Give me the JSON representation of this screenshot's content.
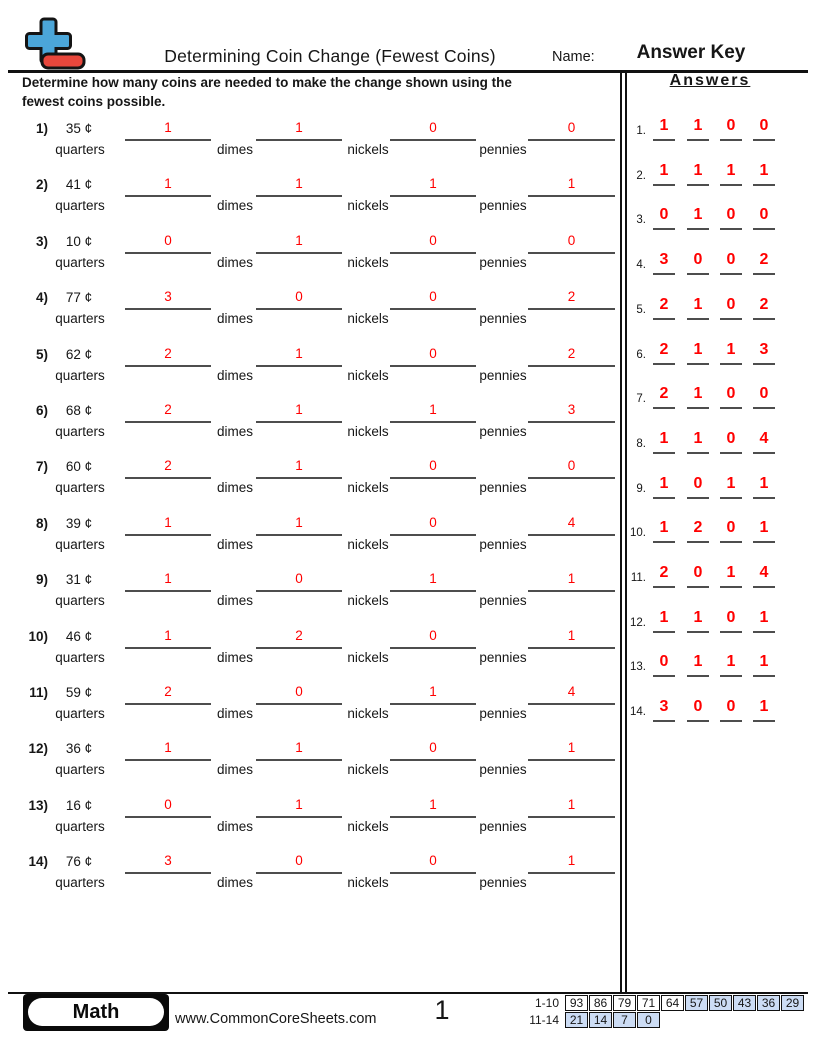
{
  "header": {
    "title": "Determining Coin Change (Fewest Coins)",
    "name_label": "Name:",
    "answer_key": "Answer Key"
  },
  "instructions": {
    "line1": "Determine how many coins are needed to make the change shown using the",
    "line2": "fewest coins possible."
  },
  "cent_symbol": "¢",
  "coin_labels": [
    "quarters",
    "dimes",
    "nickels",
    "pennies"
  ],
  "problems": [
    {
      "n": "1)",
      "amount": "35",
      "answers": [
        "1",
        "1",
        "0",
        "0"
      ]
    },
    {
      "n": "2)",
      "amount": "41",
      "answers": [
        "1",
        "1",
        "1",
        "1"
      ]
    },
    {
      "n": "3)",
      "amount": "10",
      "answers": [
        "0",
        "1",
        "0",
        "0"
      ]
    },
    {
      "n": "4)",
      "amount": "77",
      "answers": [
        "3",
        "0",
        "0",
        "2"
      ]
    },
    {
      "n": "5)",
      "amount": "62",
      "answers": [
        "2",
        "1",
        "0",
        "2"
      ]
    },
    {
      "n": "6)",
      "amount": "68",
      "answers": [
        "2",
        "1",
        "1",
        "3"
      ]
    },
    {
      "n": "7)",
      "amount": "60",
      "answers": [
        "2",
        "1",
        "0",
        "0"
      ]
    },
    {
      "n": "8)",
      "amount": "39",
      "answers": [
        "1",
        "1",
        "0",
        "4"
      ]
    },
    {
      "n": "9)",
      "amount": "31",
      "answers": [
        "1",
        "0",
        "1",
        "1"
      ]
    },
    {
      "n": "10)",
      "amount": "46",
      "answers": [
        "1",
        "2",
        "0",
        "1"
      ]
    },
    {
      "n": "11)",
      "amount": "59",
      "answers": [
        "2",
        "0",
        "1",
        "4"
      ]
    },
    {
      "n": "12)",
      "amount": "36",
      "answers": [
        "1",
        "1",
        "0",
        "1"
      ]
    },
    {
      "n": "13)",
      "amount": "16",
      "answers": [
        "0",
        "1",
        "1",
        "1"
      ]
    },
    {
      "n": "14)",
      "amount": "76",
      "answers": [
        "3",
        "0",
        "0",
        "1"
      ]
    }
  ],
  "answers_panel": {
    "title": "Answers",
    "rows": [
      {
        "n": "1.",
        "values": [
          "1",
          "1",
          "0",
          "0"
        ]
      },
      {
        "n": "2.",
        "values": [
          "1",
          "1",
          "1",
          "1"
        ]
      },
      {
        "n": "3.",
        "values": [
          "0",
          "1",
          "0",
          "0"
        ]
      },
      {
        "n": "4.",
        "values": [
          "3",
          "0",
          "0",
          "2"
        ]
      },
      {
        "n": "5.",
        "values": [
          "2",
          "1",
          "0",
          "2"
        ]
      },
      {
        "n": "6.",
        "values": [
          "2",
          "1",
          "1",
          "3"
        ]
      },
      {
        "n": "7.",
        "values": [
          "2",
          "1",
          "0",
          "0"
        ]
      },
      {
        "n": "8.",
        "values": [
          "1",
          "1",
          "0",
          "4"
        ]
      },
      {
        "n": "9.",
        "values": [
          "1",
          "0",
          "1",
          "1"
        ]
      },
      {
        "n": "10.",
        "values": [
          "1",
          "2",
          "0",
          "1"
        ]
      },
      {
        "n": "11.",
        "values": [
          "2",
          "0",
          "1",
          "4"
        ]
      },
      {
        "n": "12.",
        "values": [
          "1",
          "1",
          "0",
          "1"
        ]
      },
      {
        "n": "13.",
        "values": [
          "0",
          "1",
          "1",
          "1"
        ]
      },
      {
        "n": "14.",
        "values": [
          "3",
          "0",
          "0",
          "1"
        ]
      }
    ]
  },
  "footer": {
    "subject": "Math",
    "website": "www.CommonCoreSheets.com",
    "page_number": "1",
    "score_table": [
      {
        "label": "1-10",
        "cells": [
          "93",
          "86",
          "79",
          "71",
          "64",
          "57",
          "50",
          "43",
          "36",
          "29"
        ],
        "highlight": [
          false,
          false,
          false,
          false,
          false,
          true,
          true,
          true,
          true,
          true
        ]
      },
      {
        "label": "11-14",
        "cells": [
          "21",
          "14",
          "7",
          "0"
        ],
        "highlight": [
          true,
          true,
          true,
          true
        ]
      }
    ]
  },
  "colors": {
    "answer_red": "#ff0000",
    "cell_blue": "#ccdcf4",
    "logo_blue": "#4ba6d9",
    "logo_red": "#e8473c",
    "line_gray": "#4d4d4d"
  }
}
